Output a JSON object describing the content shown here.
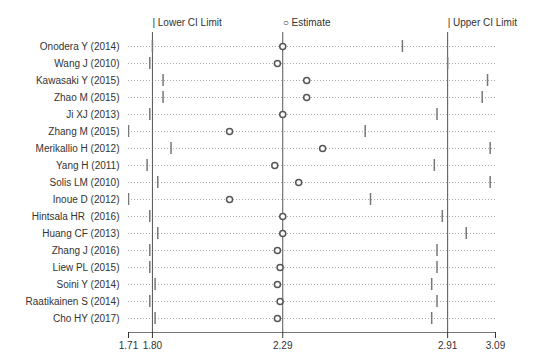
{
  "chart_data": {
    "type": "forest",
    "categories": [
      "Onodera Y (2014)",
      "Wang J (2010)",
      "Kawasaki Y (2015)",
      "Zhao M (2015)",
      "Ji XJ (2013)",
      "Zhang M (2015)",
      "Merikallio H (2012)",
      "Yang H (2011)",
      "Solis LM (2010)",
      "Inoue D (2012)",
      "Hintsala HR  (2016)",
      "Huang CF (2013)",
      "Zhang J (2016)",
      "Liew PL (2015)",
      "Soini Y (2014)",
      "Raatikainen S (2014)",
      "Cho HY (2017)"
    ],
    "values": [
      2.29,
      2.27,
      2.38,
      2.38,
      2.29,
      2.09,
      2.44,
      2.26,
      2.35,
      2.09,
      2.29,
      2.29,
      2.27,
      2.28,
      2.27,
      2.28,
      2.27
    ],
    "lower_ci": [
      1.8,
      1.79,
      1.84,
      1.84,
      1.79,
      1.71,
      1.87,
      1.78,
      1.82,
      1.71,
      1.79,
      1.82,
      1.79,
      1.79,
      1.81,
      1.79,
      1.81
    ],
    "upper_ci": [
      2.74,
      2.91,
      3.06,
      3.04,
      2.87,
      2.6,
      3.07,
      2.86,
      3.07,
      2.62,
      2.89,
      2.98,
      2.87,
      2.87,
      2.85,
      2.87,
      2.85
    ],
    "xlim": [
      1.71,
      3.09
    ],
    "xticks": [
      1.71,
      {
        "value": 1.8,
        "label": "1.80"
      },
      2.29,
      2.91,
      3.09
    ],
    "vlines": [
      1.8,
      2.29,
      2.91
    ],
    "annotations": [
      {
        "text": "| Lower CI Limit",
        "x": 1.8
      },
      {
        "text": "○ Estimate",
        "x": 2.29
      },
      {
        "text": "| Upper CI Limit",
        "x": 2.91
      }
    ],
    "grid": "y"
  }
}
